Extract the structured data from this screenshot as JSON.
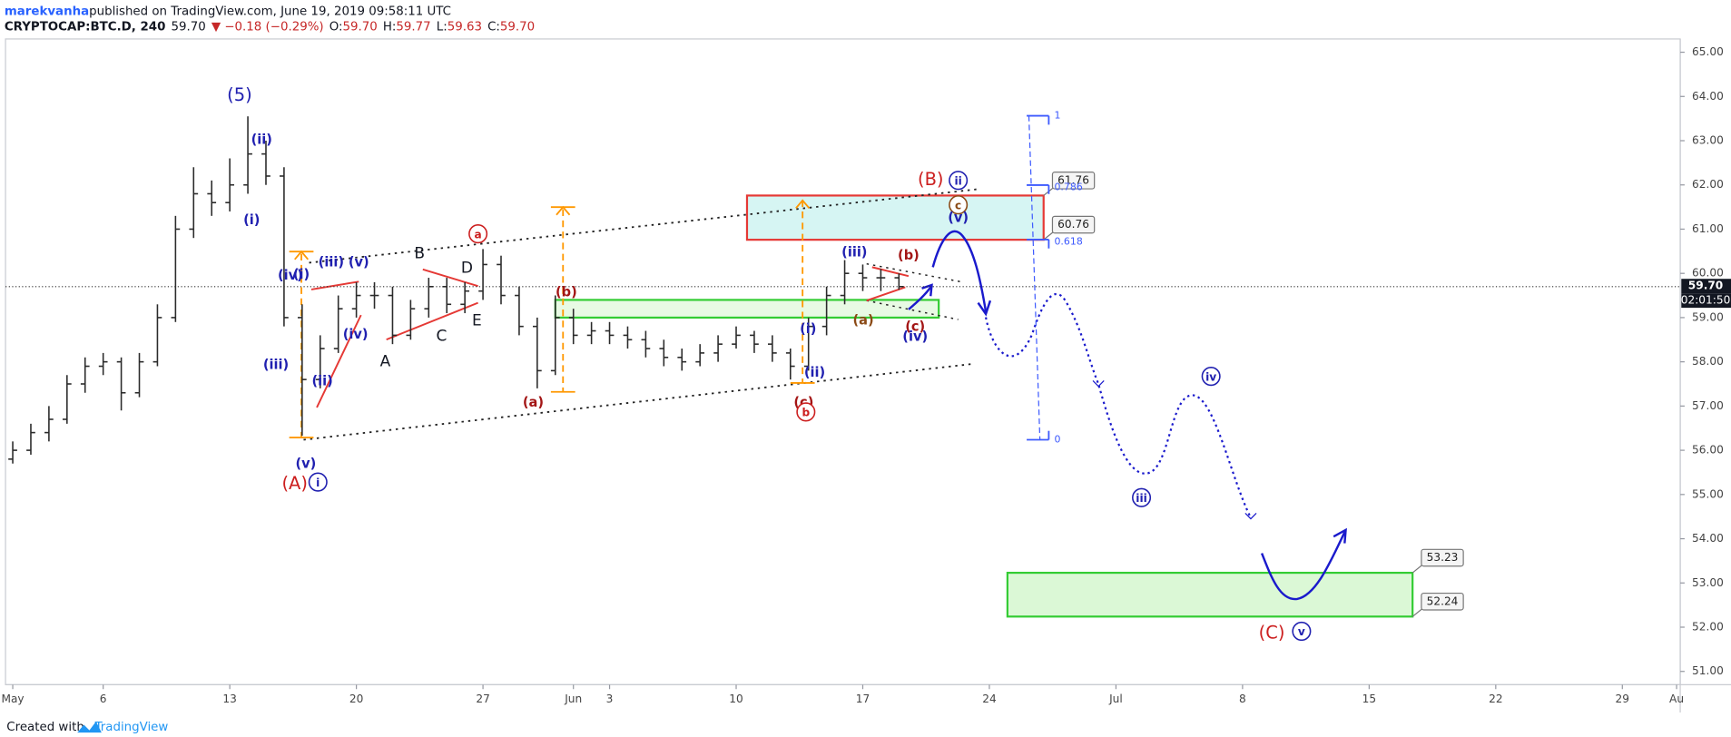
{
  "chart_data": {
    "type": "ohlc",
    "header": {
      "author": "marekvanha",
      "published": " published on TradingView.com, June 19, 2019 09:58:11 UTC",
      "parts": [
        {
          "text": "CRYPTOCAP:BTC.D, 240",
          "color": "#131722"
        },
        {
          "text": "59.70",
          "color": "#131722"
        },
        {
          "text": "▼ −0.18 (−0.29%)",
          "color": "#c62828"
        },
        {
          "text": "O:",
          "color": "#131722"
        },
        {
          "text": "59.70",
          "color": "#c62828"
        },
        {
          "text": "H:",
          "color": "#131722"
        },
        {
          "text": "59.77",
          "color": "#c62828"
        },
        {
          "text": "L:",
          "color": "#131722"
        },
        {
          "text": "59.63",
          "color": "#c62828"
        },
        {
          "text": "C:",
          "color": "#131722"
        },
        {
          "text": "59.70",
          "color": "#c62828"
        }
      ]
    },
    "color": "#2b2b2b",
    "x": [
      0,
      1,
      2,
      3,
      4,
      5,
      6,
      7,
      8,
      9,
      10,
      11,
      12,
      13,
      14,
      15,
      16,
      17,
      18,
      19,
      20,
      21,
      22,
      23,
      24,
      25,
      26,
      27,
      28,
      29,
      30,
      31,
      32,
      33,
      34,
      35,
      36,
      37,
      38,
      39,
      40,
      41,
      42,
      43,
      44,
      45,
      46,
      47,
      48,
      49
    ],
    "open": [
      55.8,
      56.0,
      56.4,
      56.7,
      57.5,
      57.9,
      58.0,
      57.3,
      58.0,
      59.0,
      61.0,
      61.8,
      61.6,
      62.0,
      62.7,
      62.2,
      59.0,
      57.6,
      58.3,
      59.2,
      59.5,
      59.5,
      58.6,
      59.2,
      59.7,
      59.3,
      59.6,
      60.2,
      59.5,
      58.8,
      57.8,
      59.0,
      58.6,
      58.7,
      58.6,
      58.5,
      58.3,
      58.1,
      58.0,
      58.2,
      58.4,
      58.6,
      58.4,
      58.2,
      57.9,
      58.8,
      59.5,
      60.0,
      59.9,
      59.9
    ],
    "high": [
      56.2,
      56.6,
      57.0,
      57.7,
      58.1,
      58.2,
      58.1,
      58.2,
      59.3,
      61.3,
      62.4,
      62.1,
      62.6,
      63.55,
      63.0,
      62.4,
      59.3,
      58.6,
      59.5,
      59.8,
      59.8,
      59.7,
      59.4,
      59.9,
      59.9,
      59.8,
      60.55,
      60.4,
      59.7,
      59.0,
      59.5,
      59.2,
      58.9,
      58.9,
      58.8,
      58.7,
      58.5,
      58.3,
      58.4,
      58.6,
      58.8,
      58.7,
      58.6,
      58.3,
      59.0,
      59.7,
      60.3,
      60.2,
      60.1,
      60.0
    ],
    "low": [
      55.7,
      55.9,
      56.2,
      56.6,
      57.3,
      57.7,
      56.9,
      57.2,
      57.9,
      58.9,
      60.8,
      61.3,
      61.4,
      61.8,
      62.0,
      58.8,
      56.33,
      57.4,
      58.2,
      59.0,
      59.2,
      58.4,
      58.5,
      59.0,
      59.1,
      59.1,
      59.4,
      59.3,
      58.6,
      57.4,
      57.7,
      58.4,
      58.4,
      58.4,
      58.3,
      58.1,
      57.9,
      57.8,
      57.9,
      58.0,
      58.3,
      58.2,
      58.0,
      57.6,
      57.8,
      58.6,
      59.3,
      59.6,
      59.6,
      59.63
    ],
    "close": [
      56.0,
      56.4,
      56.7,
      57.5,
      57.9,
      58.0,
      57.3,
      58.0,
      59.0,
      61.0,
      61.8,
      61.6,
      62.0,
      62.7,
      62.2,
      59.0,
      57.6,
      58.3,
      59.2,
      59.5,
      59.5,
      58.6,
      59.2,
      59.7,
      59.3,
      59.6,
      60.2,
      59.5,
      58.8,
      57.8,
      59.0,
      58.6,
      58.7,
      58.6,
      58.5,
      58.3,
      58.1,
      58.0,
      58.2,
      58.4,
      58.6,
      58.4,
      58.2,
      57.9,
      58.8,
      59.5,
      60.0,
      59.9,
      59.9,
      59.7
    ],
    "xlim": [
      -0.4,
      92.2
    ],
    "xticks": [
      {
        "value": 0,
        "label": "May"
      },
      {
        "value": 5,
        "label": "6"
      },
      {
        "value": 12,
        "label": "13"
      },
      {
        "value": 19,
        "label": "20"
      },
      {
        "value": 26,
        "label": "27"
      },
      {
        "value": 31,
        "label": "Jun"
      },
      {
        "value": 33,
        "label": "3"
      },
      {
        "value": 40,
        "label": "10"
      },
      {
        "value": 47,
        "label": "17"
      },
      {
        "value": 54,
        "label": "24"
      },
      {
        "value": 61,
        "label": "Jul"
      },
      {
        "value": 68,
        "label": "8"
      },
      {
        "value": 75,
        "label": "15"
      },
      {
        "value": 82,
        "label": "22"
      },
      {
        "value": 89,
        "label": "29"
      },
      {
        "value": 92,
        "label": "Au"
      }
    ],
    "ylim": [
      50.7,
      65.3
    ],
    "yticks": [
      {
        "value": 51,
        "label": "51.00"
      },
      {
        "value": 52,
        "label": "52.00"
      },
      {
        "value": 53,
        "label": "53.00"
      },
      {
        "value": 54,
        "label": "54.00"
      },
      {
        "value": 55,
        "label": "55.00"
      },
      {
        "value": 56,
        "label": "56.00"
      },
      {
        "value": 57,
        "label": "57.00"
      },
      {
        "value": 58,
        "label": "58.00"
      },
      {
        "value": 59,
        "label": "59.00"
      },
      {
        "value": 60,
        "label": "60.00"
      },
      {
        "value": 61,
        "label": "61.00"
      },
      {
        "value": 62,
        "label": "62.00"
      },
      {
        "value": 63,
        "label": "63.00"
      },
      {
        "value": 64,
        "label": "64.00"
      },
      {
        "value": 65,
        "label": "65.00"
      }
    ],
    "last_price": {
      "value": 59.7,
      "label": "59.70"
    },
    "countdown": "02:01:50",
    "zones": [
      {
        "low": 60.76,
        "high": 61.76,
        "x0": 40.6,
        "x1": 57.0,
        "stroke": "#e53935",
        "fill": "#d6f5f3",
        "callout": true
      },
      {
        "low": 52.24,
        "high": 53.23,
        "x0": 55.0,
        "x1": 77.4,
        "stroke": "#33cc33",
        "fill": "#dbf8d6",
        "callout": true
      },
      {
        "low": 59.0,
        "high": 59.4,
        "x0": 30.0,
        "x1": 51.2,
        "stroke": "#33cc33",
        "fill": "#e8fae4",
        "callout": false
      }
    ],
    "fib": {
      "levels": [
        1,
        0.786,
        0.618,
        0
      ],
      "color": "#3d5afe"
    },
    "annotations": [
      {
        "text": "(5)",
        "color": "#2020b0"
      },
      {
        "text": "(ii)",
        "color": "#2020b0"
      },
      {
        "text": "(i)",
        "color": "#2020b0"
      },
      {
        "text": "(iv)",
        "color": "#2020b0"
      },
      {
        "text": "(i)",
        "color": "#2020b0"
      },
      {
        "text": "(iii)",
        "color": "#2020b0"
      },
      {
        "text": "(v)",
        "color": "#2020b0"
      },
      {
        "text": "(iv)",
        "color": "#2020b0"
      },
      {
        "text": "(iii)",
        "color": "#2020b0"
      },
      {
        "text": "(ii)",
        "color": "#2020b0"
      },
      {
        "text": "(v)",
        "color": "#2020b0"
      },
      {
        "text": "(A)",
        "color": "#cc1f1f"
      },
      {
        "text": "i",
        "color": "#2020b0",
        "circle": true
      },
      {
        "text": "A",
        "color": "#131722"
      },
      {
        "text": "B",
        "color": "#131722"
      },
      {
        "text": "C",
        "color": "#131722"
      },
      {
        "text": "D",
        "color": "#131722"
      },
      {
        "text": "E",
        "color": "#131722"
      },
      {
        "text": "a",
        "color": "#cc1f1f",
        "circle": true
      },
      {
        "text": "(b)",
        "color": "#a31515"
      },
      {
        "text": "(a)",
        "color": "#a31515"
      },
      {
        "text": "(c)",
        "color": "#a31515"
      },
      {
        "text": "b",
        "color": "#cc1f1f",
        "circle": true
      },
      {
        "text": "(i)",
        "color": "#2020b0"
      },
      {
        "text": "(ii)",
        "color": "#2020b0"
      },
      {
        "text": "(iii)",
        "color": "#2020b0"
      },
      {
        "text": "(b)",
        "color": "#a31515"
      },
      {
        "text": "(a)",
        "color": "#8b4a16"
      },
      {
        "text": "(c)",
        "color": "#a31515"
      },
      {
        "text": "(iv)",
        "color": "#2020b0"
      },
      {
        "text": "(B)",
        "color": "#cc1f1f"
      },
      {
        "text": "ii",
        "color": "#2020b0",
        "circle": true
      },
      {
        "text": "c",
        "color": "#8b4a16",
        "circle": true
      },
      {
        "text": "(v)",
        "color": "#2020b0"
      },
      {
        "text": "iv",
        "color": "#2020b0",
        "circle": true
      },
      {
        "text": "iii",
        "color": "#2020b0",
        "circle": true
      },
      {
        "text": "(C)",
        "color": "#cc1f1f"
      },
      {
        "text": "v",
        "color": "#2020b0",
        "circle": true
      }
    ],
    "footer": {
      "created": "Created with",
      "brand": "TradingView"
    }
  }
}
